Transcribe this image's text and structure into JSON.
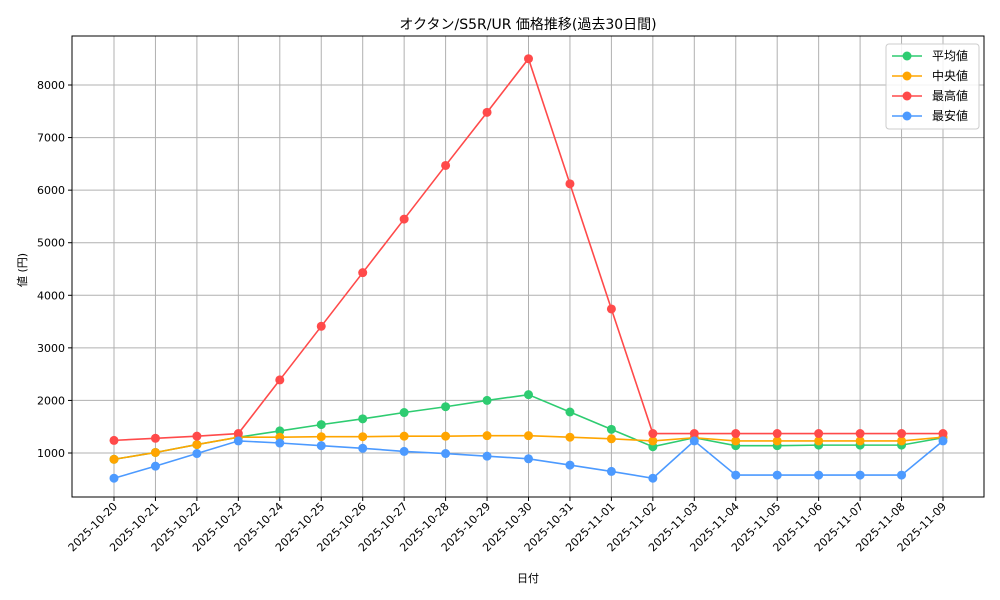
{
  "chart_data": {
    "type": "line",
    "title": "オクタン/S5R/UR 価格推移(過去30日間)",
    "xlabel": "日付",
    "ylabel": "値 (円)",
    "ylim": [
      100,
      8900
    ],
    "yticks": [
      1000,
      2000,
      3000,
      4000,
      5000,
      6000,
      7000,
      8000
    ],
    "grid": true,
    "legend_position": "upper right",
    "categories": [
      "2025-10-20",
      "2025-10-21",
      "2025-10-22",
      "2025-10-23",
      "2025-10-24",
      "2025-10-25",
      "2025-10-26",
      "2025-10-27",
      "2025-10-28",
      "2025-10-29",
      "2025-10-30",
      "2025-10-31",
      "2025-11-01",
      "2025-11-02",
      "2025-11-03",
      "2025-11-04",
      "2025-11-05",
      "2025-11-06",
      "2025-11-07",
      "2025-11-08",
      "2025-11-09"
    ],
    "series": [
      {
        "name": "平均値",
        "color": "#2ecc71",
        "values": [
          880,
          1010,
          1160,
          1300,
          1420,
          1540,
          1650,
          1770,
          1880,
          2000,
          2110,
          1780,
          1450,
          1120,
          1290,
          1140,
          1140,
          1150,
          1150,
          1150,
          1290
        ]
      },
      {
        "name": "中央値",
        "color": "#ffa500",
        "values": [
          880,
          1010,
          1160,
          1300,
          1300,
          1310,
          1310,
          1320,
          1320,
          1330,
          1330,
          1300,
          1270,
          1230,
          1290,
          1230,
          1230,
          1230,
          1230,
          1230,
          1300
        ]
      },
      {
        "name": "最高値",
        "color": "#ff4a4a",
        "values": [
          1240,
          1280,
          1320,
          1370,
          2390,
          3410,
          4430,
          5450,
          6470,
          7480,
          8500,
          6120,
          3740,
          1370,
          1370,
          1370,
          1370,
          1370,
          1370,
          1370,
          1370
        ]
      },
      {
        "name": "最安値",
        "color": "#4c9aff",
        "values": [
          520,
          750,
          990,
          1230,
          1190,
          1140,
          1090,
          1030,
          990,
          940,
          890,
          770,
          650,
          520,
          1230,
          580,
          580,
          580,
          580,
          580,
          1230
        ]
      }
    ]
  }
}
